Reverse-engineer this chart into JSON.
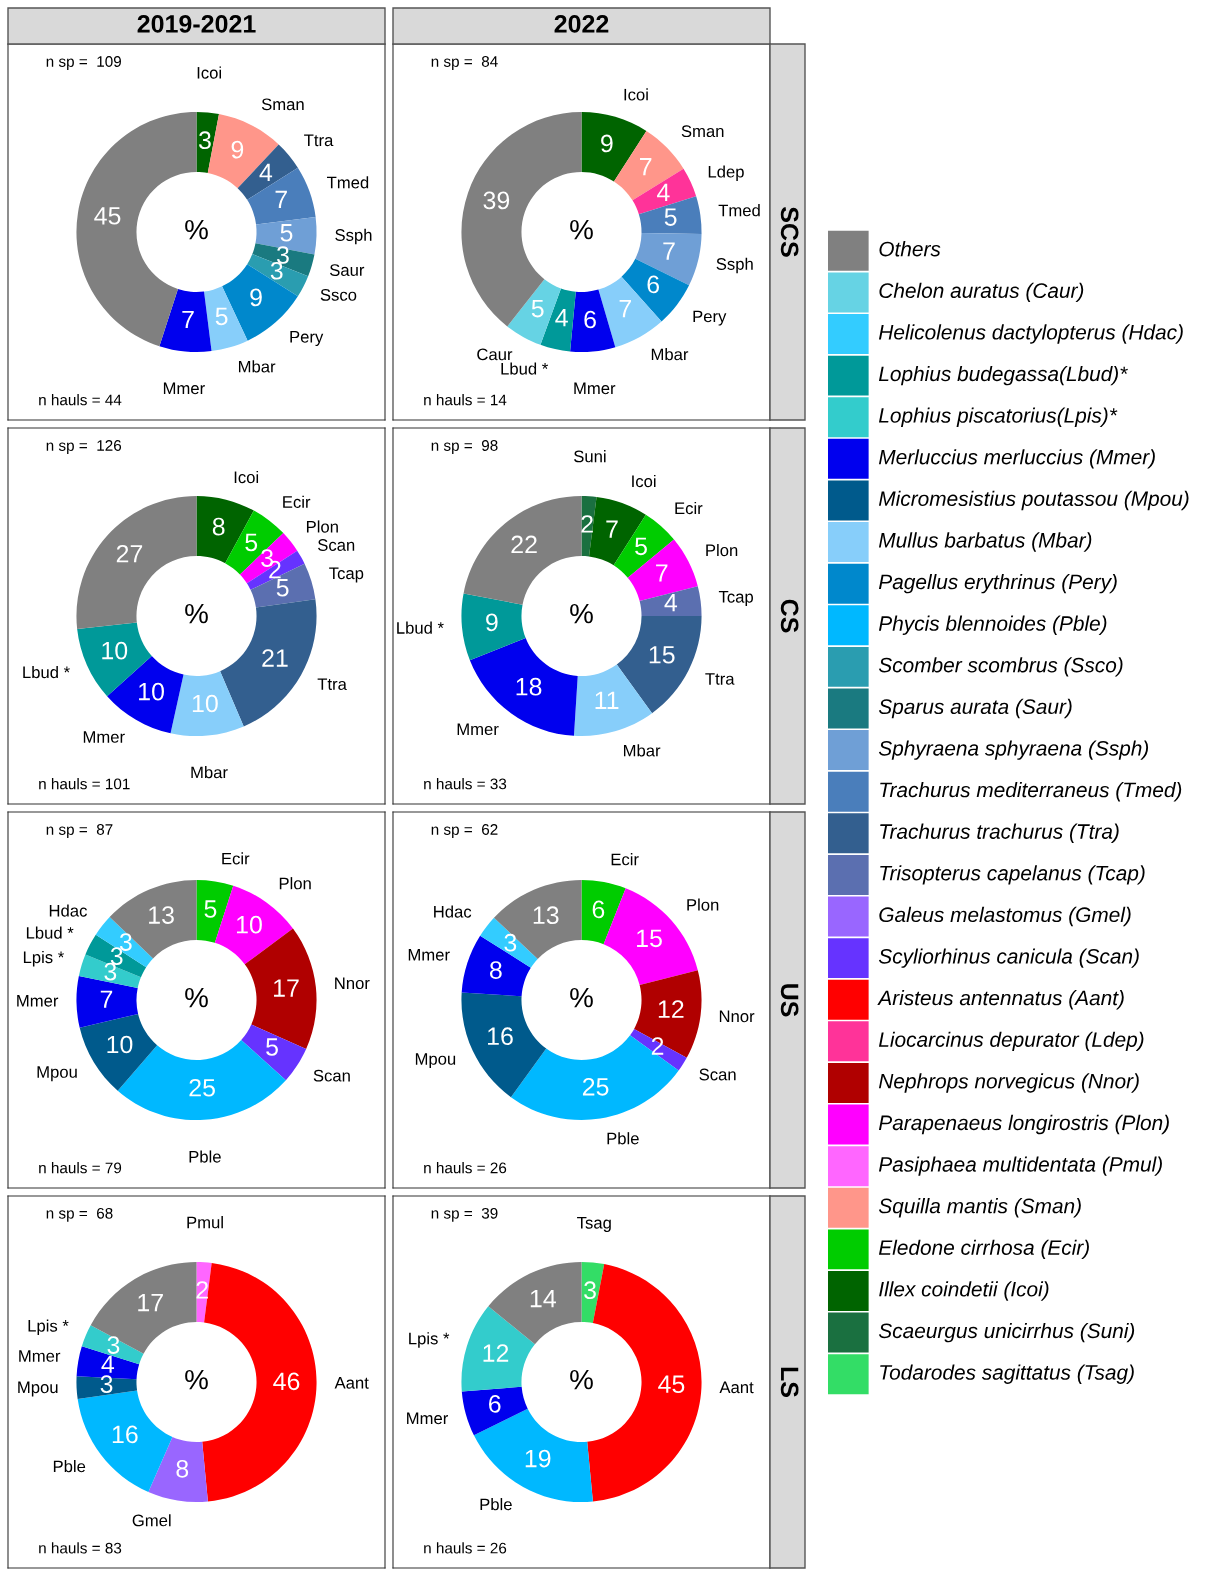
{
  "chart_data": [
    {
      "type": "donut",
      "title": "2019-2021",
      "ylabel": "%",
      "data_labels": true,
      "annotations": [
        "n sp =  109",
        "n hauls = 44"
      ],
      "categories": [
        "Icoi",
        "Sman",
        "Ttra",
        "Tmed",
        "Ssph",
        "Saur",
        "Ssco",
        "Pery",
        "Mbar",
        "Mmer",
        null
      ],
      "values": [
        3,
        9,
        4,
        7,
        5,
        3,
        3,
        9,
        5,
        7,
        45
      ],
      "colors": [
        "#006400",
        "#ff968a",
        "#335f8f",
        "#4a7ebb",
        "#6f9fd6",
        "#1a7a80",
        "#2a9db0",
        "#0088cc",
        "#87cefa",
        "#0000ee",
        "#808080"
      ]
    },
    {
      "type": "donut",
      "title": "2022",
      "y2label": "SCS",
      "ylabel": "%",
      "data_labels": true,
      "annotations": [
        "n sp =  84",
        "n hauls = 14"
      ],
      "categories": [
        "Icoi",
        "Sman",
        "Ldep",
        "Tmed",
        "Ssph",
        "Pery",
        "Mbar",
        "Mmer",
        "Lbud *",
        "Caur",
        null
      ],
      "values": [
        9,
        7,
        4,
        5,
        7,
        6,
        7,
        6,
        4,
        5,
        39
      ],
      "colors": [
        "#006400",
        "#ff968a",
        "#ff3399",
        "#4a7ebb",
        "#6f9fd6",
        "#0088cc",
        "#87cefa",
        "#0000ee",
        "#009999",
        "#66d3e4",
        "#808080"
      ]
    },
    {
      "type": "donut",
      "ylabel": "%",
      "data_labels": true,
      "annotations": [
        "n sp =  126",
        "n hauls = 101"
      ],
      "categories": [
        "Icoi",
        "Ecir",
        "Plon",
        "Scan",
        "Tcap",
        "Ttra",
        "Mbar",
        "Mmer",
        "Lbud *",
        null
      ],
      "values": [
        8,
        5,
        3,
        2,
        5,
        21,
        10,
        10,
        10,
        27
      ],
      "colors": [
        "#006400",
        "#00cc00",
        "#ff00ff",
        "#6633ff",
        "#5b6fb0",
        "#335f8f",
        "#87cefa",
        "#0000ee",
        "#009999",
        "#808080"
      ]
    },
    {
      "type": "donut",
      "y2label": "CS",
      "ylabel": "%",
      "data_labels": true,
      "annotations": [
        "n sp =  98",
        "n hauls = 33"
      ],
      "categories": [
        "Suni",
        "Icoi",
        "Ecir",
        "Plon",
        "Tcap",
        "Ttra",
        "Mbar",
        "Mmer",
        "Lbud *",
        null
      ],
      "values": [
        2,
        7,
        5,
        7,
        4,
        15,
        11,
        18,
        9,
        22
      ],
      "colors": [
        "#1a7040",
        "#006400",
        "#00cc00",
        "#ff00ff",
        "#5b6fb0",
        "#335f8f",
        "#87cefa",
        "#0000ee",
        "#009999",
        "#808080"
      ]
    },
    {
      "type": "donut",
      "ylabel": "%",
      "data_labels": true,
      "annotations": [
        "n sp =  87",
        "n hauls = 79"
      ],
      "categories": [
        "Ecir",
        "Plon",
        "Nnor",
        "Scan",
        "Pble",
        "Mpou",
        "Mmer",
        "Lpis *",
        "Lbud *",
        "Hdac",
        null
      ],
      "values": [
        5,
        10,
        17,
        5,
        25,
        10,
        7,
        3,
        3,
        3,
        13
      ],
      "colors": [
        "#00cc00",
        "#ff00ff",
        "#b00000",
        "#6633ff",
        "#00b8ff",
        "#005a8c",
        "#0000ee",
        "#33cccc",
        "#009999",
        "#33ccff",
        "#808080"
      ]
    },
    {
      "type": "donut",
      "y2label": "US",
      "ylabel": "%",
      "data_labels": true,
      "annotations": [
        "n sp =  62",
        "n hauls = 26"
      ],
      "categories": [
        "Ecir",
        "Plon",
        "Nnor",
        "Scan",
        "Pble",
        "Mpou",
        "Mmer",
        "Hdac",
        null
      ],
      "values": [
        6,
        15,
        12,
        2,
        25,
        16,
        8,
        3,
        13
      ],
      "colors": [
        "#00cc00",
        "#ff00ff",
        "#b00000",
        "#6633ff",
        "#00b8ff",
        "#005a8c",
        "#0000ee",
        "#33ccff",
        "#808080"
      ]
    },
    {
      "type": "donut",
      "ylabel": "%",
      "data_labels": true,
      "annotations": [
        "n sp =  68",
        "n hauls = 83"
      ],
      "categories": [
        "Pmul",
        "Aant",
        "Gmel",
        "Pble",
        "Mpou",
        "Mmer",
        "Lpis *",
        null
      ],
      "values": [
        2,
        46,
        8,
        16,
        3,
        4,
        3,
        17
      ],
      "colors": [
        "#ff66ff",
        "#ff0000",
        "#9966ff",
        "#00b8ff",
        "#005a8c",
        "#0000ee",
        "#33cccc",
        "#808080"
      ]
    },
    {
      "type": "donut",
      "y2label": "LS",
      "ylabel": "%",
      "data_labels": true,
      "annotations": [
        "n sp =  39",
        "n hauls = 26"
      ],
      "categories": [
        "Tsag",
        "Aant",
        "Pble",
        "Mmer",
        "Lpis *",
        null
      ],
      "values": [
        3,
        45,
        19,
        6,
        12,
        14
      ],
      "colors": [
        "#33dd66",
        "#ff0000",
        "#00b8ff",
        "#0000ee",
        "#33cccc",
        "#808080"
      ]
    },
    {
      "type": "other",
      "categories": [
        "Others",
        "Chelon auratus (Caur)",
        "Helicolenus dactylopterus (Hdac)",
        "Lophius budegassa(Lbud)*",
        "Lophius piscatorius(Lpis)*",
        "Merluccius merluccius (Mmer)",
        "Micromesistius poutassou (Mpou)",
        "Mullus barbatus (Mbar)",
        "Pagellus erythrinus (Pery)",
        "Phycis blennoides (Pble)",
        "Scomber scombrus (Ssco)",
        "Sparus aurata (Saur)",
        "Sphyraena sphyraena (Ssph)",
        "Trachurus mediterraneus (Tmed)",
        "Trachurus trachurus (Ttra)",
        "Trisopterus capelanus (Tcap)",
        "Galeus melastomus (Gmel)",
        "Scyliorhinus canicula (Scan)",
        "Aristeus antennatus (Aant)",
        "Liocarcinus depurator (Ldep)",
        "Nephrops norvegicus (Nnor)",
        "Parapenaeus longirostris (Plon)",
        "Pasiphaea multidentata (Pmul)",
        "Squilla mantis (Sman)",
        "Eledone cirrhosa (Ecir)",
        "Illex coindetii (Icoi)",
        "Scaeurgus unicirrhus (Suni)",
        "Todarodes sagittatus (Tsag)"
      ],
      "colors": [
        "#808080",
        "#66d3e4",
        "#33ccff",
        "#009999",
        "#33cccc",
        "#0000ee",
        "#005a8c",
        "#87cefa",
        "#0088cc",
        "#00b8ff",
        "#2a9db0",
        "#1a7a80",
        "#6f9fd6",
        "#4a7ebb",
        "#335f8f",
        "#5b6fb0",
        "#9966ff",
        "#6633ff",
        "#ff0000",
        "#ff3399",
        "#b00000",
        "#ff00ff",
        "#ff66ff",
        "#ff968a",
        "#00cc00",
        "#006400",
        "#1a7040",
        "#33dd66"
      ]
    }
  ]
}
